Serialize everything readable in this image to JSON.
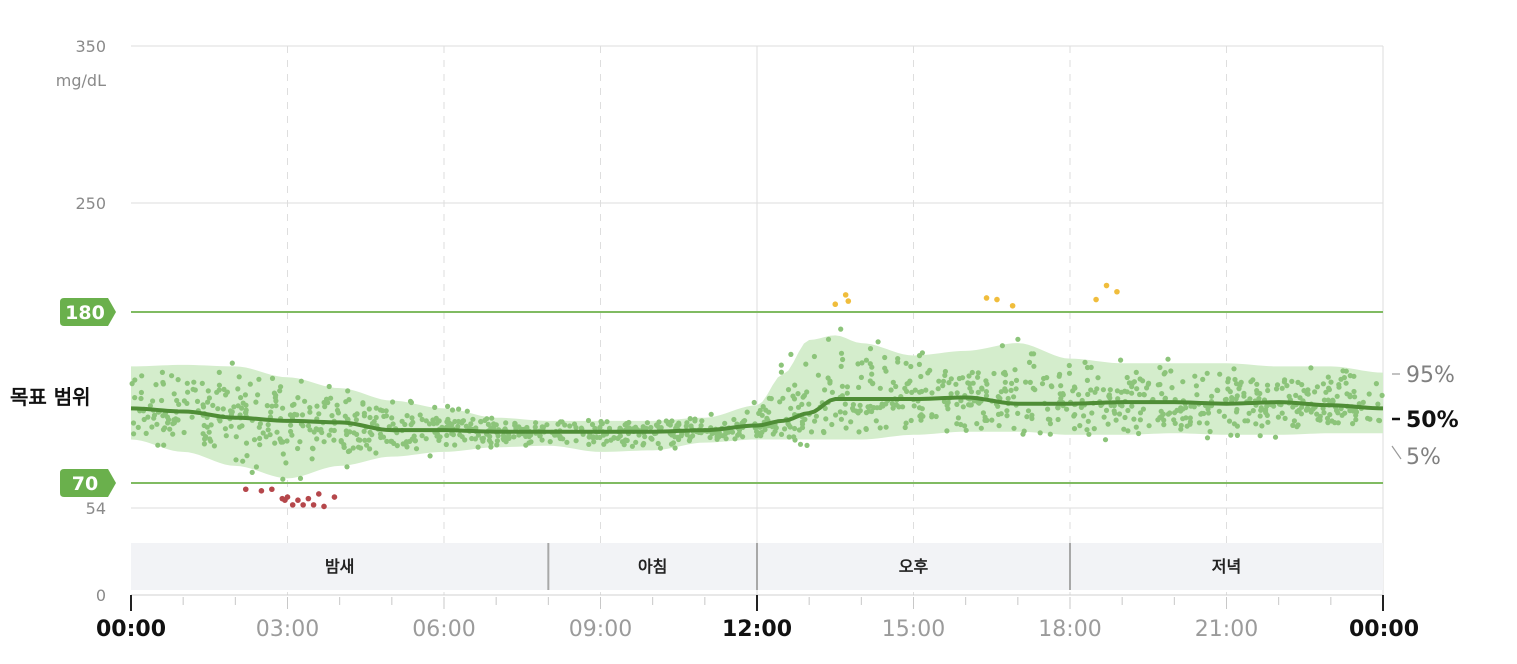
{
  "chart_data": {
    "type": "scatter",
    "ylabel": "mg/dL",
    "ylim": [
      0,
      350
    ],
    "y_ticks": [
      {
        "value": 0,
        "label": "0"
      },
      {
        "value": 54,
        "label": "54"
      },
      {
        "value": 250,
        "label": "250"
      },
      {
        "value": 350,
        "label": "350"
      }
    ],
    "target_range": {
      "label": "목표 범위",
      "low": 70,
      "high": 180,
      "low_label": "70",
      "high_label": "180"
    },
    "x_ticks": [
      {
        "hour": 0,
        "label": "00:00",
        "major": true
      },
      {
        "hour": 3,
        "label": "03:00",
        "major": false
      },
      {
        "hour": 6,
        "label": "06:00",
        "major": false
      },
      {
        "hour": 9,
        "label": "09:00",
        "major": false
      },
      {
        "hour": 12,
        "label": "12:00",
        "major": true
      },
      {
        "hour": 15,
        "label": "15:00",
        "major": false
      },
      {
        "hour": 18,
        "label": "18:00",
        "major": false
      },
      {
        "hour": 21,
        "label": "21:00",
        "major": false
      },
      {
        "hour": 24,
        "label": "00:00",
        "major": true
      }
    ],
    "periods": [
      {
        "label": "밤새",
        "start": 0,
        "end": 8
      },
      {
        "label": "아침",
        "start": 8,
        "end": 12
      },
      {
        "label": "오후",
        "start": 12,
        "end": 18
      },
      {
        "label": "저녁",
        "start": 18,
        "end": 24
      }
    ],
    "percentile_labels": [
      {
        "label": "95%",
        "major": false
      },
      {
        "label": "50%",
        "major": true
      },
      {
        "label": "5%",
        "major": false
      }
    ],
    "percentiles": {
      "hours": [
        0,
        1,
        2,
        3,
        4,
        5,
        6,
        7,
        8,
        9,
        10,
        11,
        12,
        12.5,
        13,
        13.5,
        14,
        15,
        16,
        17,
        18,
        19,
        20,
        21,
        22,
        23,
        24
      ],
      "p95": [
        145,
        146,
        145,
        138,
        131,
        123,
        118,
        112,
        110,
        110,
        110,
        112,
        120,
        140,
        162,
        165,
        160,
        152,
        155,
        160,
        150,
        147,
        147,
        147,
        145,
        145,
        141
      ],
      "p50": [
        118,
        116,
        112,
        110,
        109,
        104,
        104,
        103,
        103,
        103,
        103,
        104,
        107,
        110,
        115,
        124,
        124,
        124,
        125,
        121,
        121,
        122,
        122,
        121,
        122,
        120,
        118
      ],
      "p05": [
        98,
        90,
        81,
        73,
        81,
        87,
        90,
        93,
        94,
        90,
        91,
        96,
        98,
        98,
        98,
        98,
        98,
        101,
        103,
        103,
        101,
        101,
        102,
        101,
        101,
        102,
        102
      ]
    },
    "outliers_low": [
      {
        "hour": 2.2,
        "value": 66
      },
      {
        "hour": 2.5,
        "value": 65
      },
      {
        "hour": 2.7,
        "value": 66
      },
      {
        "hour": 2.9,
        "value": 60
      },
      {
        "hour": 3.0,
        "value": 61
      },
      {
        "hour": 3.2,
        "value": 59
      },
      {
        "hour": 3.3,
        "value": 56
      },
      {
        "hour": 3.5,
        "value": 56
      },
      {
        "hour": 3.4,
        "value": 60
      },
      {
        "hour": 3.6,
        "value": 63
      },
      {
        "hour": 3.7,
        "value": 55
      },
      {
        "hour": 3.9,
        "value": 61
      },
      {
        "hour": 3.1,
        "value": 56
      },
      {
        "hour": 2.95,
        "value": 59
      }
    ],
    "outliers_high": [
      {
        "hour": 13.5,
        "value": 185
      },
      {
        "hour": 13.7,
        "value": 191
      },
      {
        "hour": 13.75,
        "value": 187
      },
      {
        "hour": 16.4,
        "value": 189
      },
      {
        "hour": 16.6,
        "value": 188
      },
      {
        "hour": 16.9,
        "value": 184
      },
      {
        "hour": 18.5,
        "value": 188
      },
      {
        "hour": 18.7,
        "value": 197
      },
      {
        "hour": 18.9,
        "value": 193
      }
    ],
    "scatter_spread": 0.38,
    "scatter_count": 1300,
    "grid": true
  },
  "colors": {
    "band": "#d4edcc",
    "band_low": "#f4c9c9",
    "median": "#4f8d36",
    "point": "#8cc47a",
    "point_low": "#b5474b",
    "point_high": "#f0bd3c",
    "target_line": "#80bb62",
    "badge": "#6ab04c",
    "period_bg": "#f2f3f6",
    "grid": "#dedede"
  }
}
